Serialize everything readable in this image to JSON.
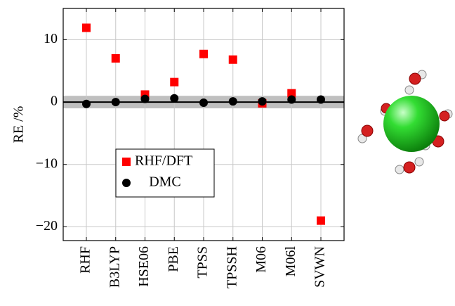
{
  "chart_data": {
    "type": "scatter",
    "y_label": "RE /%",
    "categories": [
      "RHF",
      "B3LYP",
      "HSE06",
      "PBE",
      "TPSS",
      "TPSSH",
      "M06",
      "M06l",
      "SVWN"
    ],
    "series": [
      {
        "name": "RHF/DFT",
        "color": "#ff0000",
        "marker": "square",
        "values": [
          11.9,
          7.0,
          1.2,
          3.2,
          7.7,
          6.8,
          -0.2,
          1.4,
          -19.0
        ]
      },
      {
        "name": "DMC",
        "color": "#000000",
        "marker": "circle",
        "values": [
          -0.3,
          0.0,
          0.5,
          0.6,
          -0.1,
          0.1,
          0.1,
          0.4,
          0.4
        ]
      }
    ],
    "ylim": [
      -22.2,
      15
    ],
    "yticks": [
      {
        "value": -20,
        "label": "−20"
      },
      {
        "value": -10,
        "label": "−10"
      },
      0,
      10
    ],
    "band": [
      -1,
      1
    ],
    "band_color": "#bfbfbf",
    "reference_line": 0,
    "grid": true
  }
}
